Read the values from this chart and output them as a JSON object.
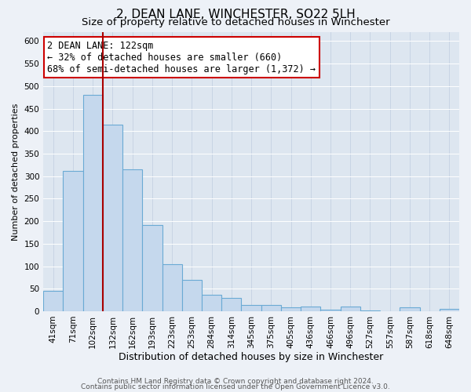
{
  "title": "2, DEAN LANE, WINCHESTER, SO22 5LH",
  "subtitle": "Size of property relative to detached houses in Winchester",
  "xlabel": "Distribution of detached houses by size in Winchester",
  "ylabel": "Number of detached properties",
  "footer_line1": "Contains HM Land Registry data © Crown copyright and database right 2024.",
  "footer_line2": "Contains public sector information licensed under the Open Government Licence v3.0.",
  "bar_labels": [
    "41sqm",
    "71sqm",
    "102sqm",
    "132sqm",
    "162sqm",
    "193sqm",
    "223sqm",
    "253sqm",
    "284sqm",
    "314sqm",
    "345sqm",
    "375sqm",
    "405sqm",
    "436sqm",
    "466sqm",
    "496sqm",
    "527sqm",
    "557sqm",
    "587sqm",
    "618sqm",
    "648sqm"
  ],
  "bar_heights": [
    46,
    312,
    480,
    415,
    315,
    192,
    105,
    69,
    37,
    30,
    13,
    14,
    8,
    10,
    3,
    10,
    2,
    0,
    8,
    0,
    5
  ],
  "bar_color": "#c5d8ed",
  "bar_edge_color": "#6aaad4",
  "annotation_title": "2 DEAN LANE: 122sqm",
  "annotation_line1": "← 32% of detached houses are smaller (660)",
  "annotation_line2": "68% of semi-detached houses are larger (1,372) →",
  "redline_x": 2.5,
  "ylim": [
    0,
    620
  ],
  "yticks": [
    0,
    50,
    100,
    150,
    200,
    250,
    300,
    350,
    400,
    450,
    500,
    550,
    600
  ],
  "background_color": "#edf1f7",
  "plot_background_color": "#dde6f0",
  "annotation_box_color": "#ffffff",
  "annotation_box_edge_color": "#cc0000",
  "redline_color": "#aa0000",
  "title_fontsize": 11,
  "subtitle_fontsize": 9.5,
  "xlabel_fontsize": 9,
  "ylabel_fontsize": 8,
  "tick_fontsize": 7.5,
  "annotation_fontsize": 8.5,
  "footer_fontsize": 6.5
}
